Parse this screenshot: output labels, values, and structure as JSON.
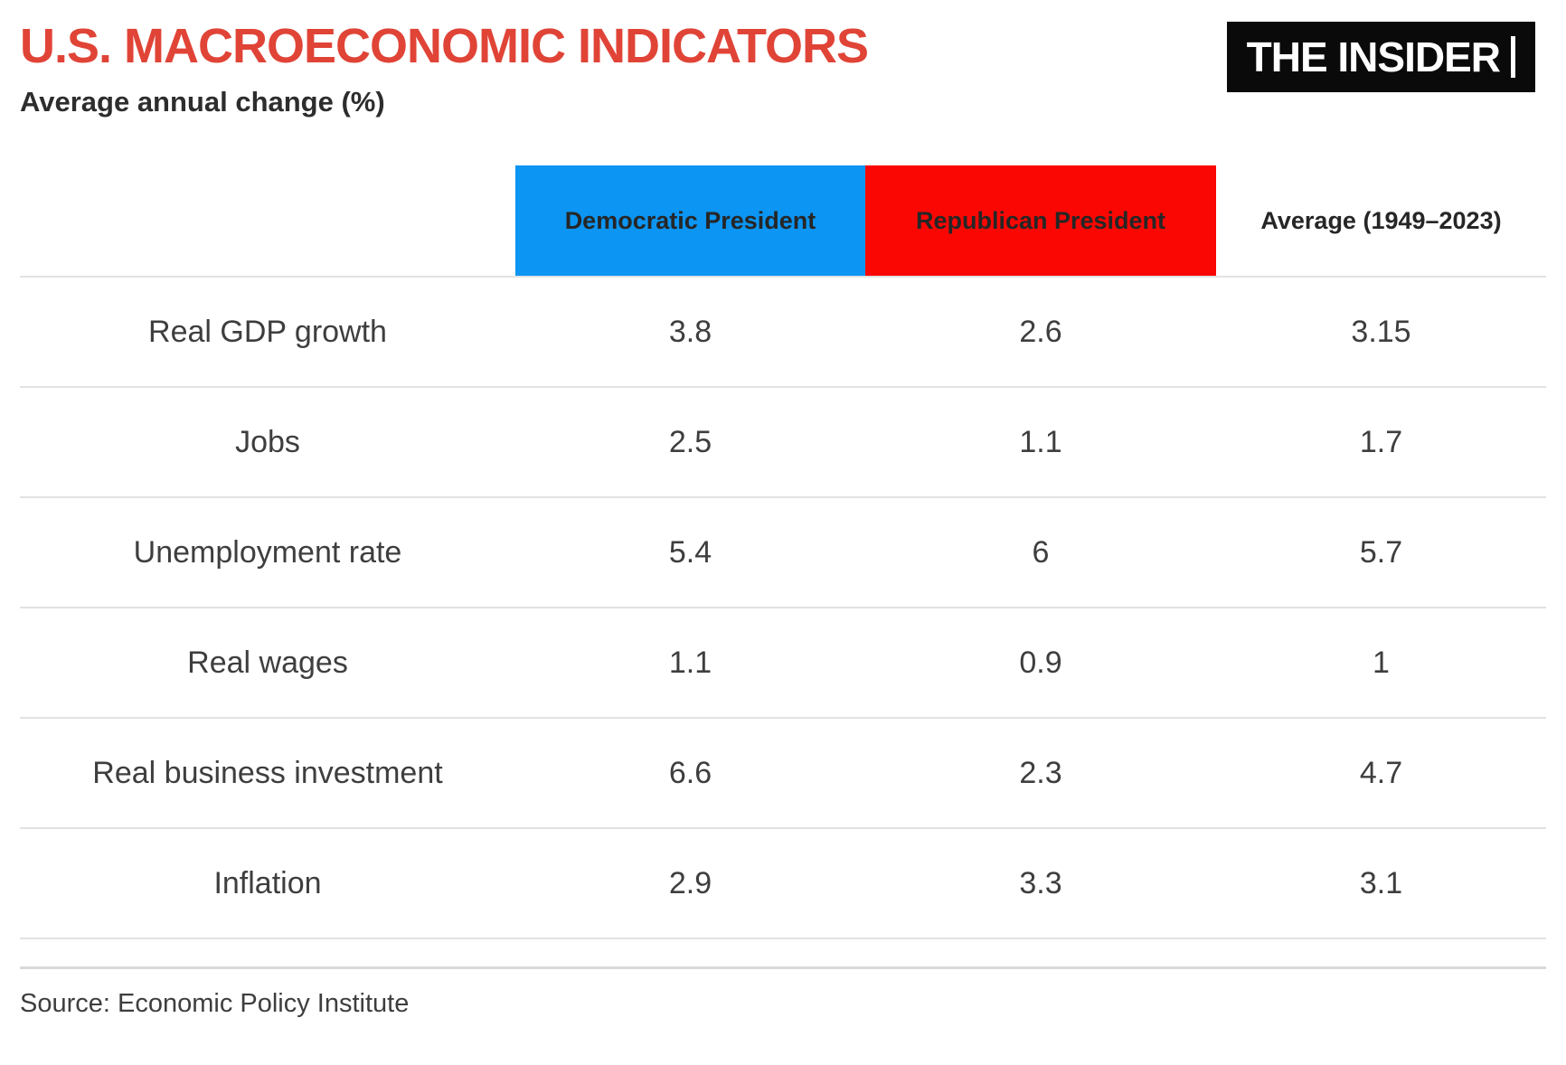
{
  "colors": {
    "title_red": "#e04437",
    "subtitle_text": "#2d2d2d",
    "dem_blue": "#0c95f2",
    "rep_red": "#fb0703",
    "line_gray": "#e2e2e2",
    "bottom_line_gray": "#d9d9d9",
    "text_dark": "#3e3e3e",
    "header_text": "#262626",
    "logo_bg": "#0a0a0a",
    "logo_text": "#ffffff"
  },
  "header": {
    "title": "U.S. MACROECONOMIC INDICATORS",
    "subtitle": "Average annual change (%)",
    "logo_text": "THE INSIDER"
  },
  "table": {
    "columns": [
      {
        "label": ""
      },
      {
        "label": "Democratic President"
      },
      {
        "label": "Republican President"
      },
      {
        "label": "Average (1949–2023)"
      }
    ],
    "rows": [
      {
        "label": "Real GDP growth",
        "dem": "3.8",
        "rep": "2.6",
        "avg": "3.15"
      },
      {
        "label": "Jobs",
        "dem": "2.5",
        "rep": "1.1",
        "avg": "1.7"
      },
      {
        "label": "Unemployment rate",
        "dem": "5.4",
        "rep": "6",
        "avg": "5.7"
      },
      {
        "label": "Real wages",
        "dem": "1.1",
        "rep": "0.9",
        "avg": "1"
      },
      {
        "label": "Real business investment",
        "dem": "6.6",
        "rep": "2.3",
        "avg": "4.7"
      },
      {
        "label": "Inflation",
        "dem": "2.9",
        "rep": "3.3",
        "avg": "3.1"
      }
    ]
  },
  "footer": {
    "source": "Source: Economic Policy Institute"
  },
  "chart_data": {
    "type": "table",
    "title": "U.S. MACROECONOMIC INDICATORS",
    "subtitle": "Average annual change (%)",
    "categories": [
      "Real GDP growth",
      "Jobs",
      "Unemployment rate",
      "Real wages",
      "Real business investment",
      "Inflation"
    ],
    "series": [
      {
        "name": "Democratic President",
        "values": [
          3.8,
          2.5,
          5.4,
          1.1,
          6.6,
          2.9
        ]
      },
      {
        "name": "Republican President",
        "values": [
          2.6,
          1.1,
          6,
          0.9,
          2.3,
          3.3
        ]
      },
      {
        "name": "Average (1949–2023)",
        "values": [
          3.15,
          1.7,
          5.7,
          1,
          4.7,
          3.1
        ]
      }
    ],
    "source": "Source: Economic Policy Institute",
    "legend_position": "column-headers",
    "grid": "horizontal-dividers"
  }
}
